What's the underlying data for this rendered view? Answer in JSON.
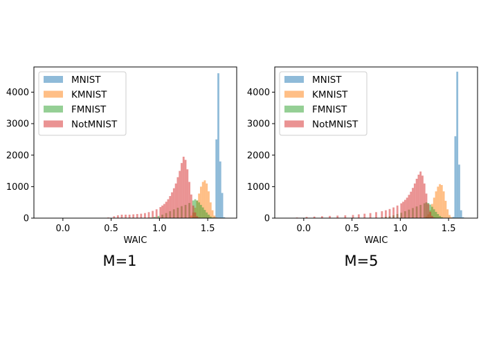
{
  "colors": {
    "MNIST": "#1f77b4",
    "KMNIST": "#ff7f0e",
    "FMNIST": "#2ca02c",
    "NotMNIST": "#d62728"
  },
  "chart_data": [
    {
      "type": "histogram",
      "caption": "M=1",
      "xlabel": "WAIC",
      "ylabel": "",
      "xlim": [
        -0.3,
        1.8
      ],
      "ylim": [
        0,
        4800
      ],
      "xticks": [
        0.0,
        0.5,
        1.0,
        1.5
      ],
      "xtick_labels": [
        "0.0",
        "0.5",
        "1.0",
        "1.5"
      ],
      "yticks": [
        0,
        1000,
        2000,
        3000,
        4000
      ],
      "ytick_labels": [
        "0",
        "1000",
        "2000",
        "3000",
        "4000"
      ],
      "grid": false,
      "legend": {
        "position": "top-left",
        "entries": [
          "MNIST",
          "KMNIST",
          "FMNIST",
          "NotMNIST"
        ]
      },
      "bar_alpha": 0.5,
      "series": [
        {
          "name": "MNIST",
          "bin_width": 0.02,
          "bins": [
            {
              "x": 1.57,
              "y": 40
            },
            {
              "x": 1.59,
              "y": 2500
            },
            {
              "x": 1.61,
              "y": 4600
            },
            {
              "x": 1.63,
              "y": 1800
            },
            {
              "x": 1.65,
              "y": 800
            },
            {
              "x": 1.67,
              "y": 30
            }
          ]
        },
        {
          "name": "KMNIST",
          "bin_width": 0.02,
          "bins": [
            {
              "x": 1.33,
              "y": 80
            },
            {
              "x": 1.35,
              "y": 180
            },
            {
              "x": 1.37,
              "y": 330
            },
            {
              "x": 1.39,
              "y": 560
            },
            {
              "x": 1.41,
              "y": 780
            },
            {
              "x": 1.43,
              "y": 1000
            },
            {
              "x": 1.45,
              "y": 1150
            },
            {
              "x": 1.47,
              "y": 1200
            },
            {
              "x": 1.49,
              "y": 1100
            },
            {
              "x": 1.51,
              "y": 850
            },
            {
              "x": 1.53,
              "y": 500
            },
            {
              "x": 1.55,
              "y": 250
            },
            {
              "x": 1.57,
              "y": 80
            },
            {
              "x": 1.59,
              "y": 20
            }
          ]
        },
        {
          "name": "FMNIST",
          "bin_width": 0.02,
          "bins": [
            {
              "x": 0.91,
              "y": 20
            },
            {
              "x": 0.95,
              "y": 40
            },
            {
              "x": 0.99,
              "y": 70
            },
            {
              "x": 1.03,
              "y": 110
            },
            {
              "x": 1.07,
              "y": 160
            },
            {
              "x": 1.11,
              "y": 220
            },
            {
              "x": 1.15,
              "y": 280
            },
            {
              "x": 1.19,
              "y": 330
            },
            {
              "x": 1.23,
              "y": 380
            },
            {
              "x": 1.27,
              "y": 420
            },
            {
              "x": 1.31,
              "y": 480
            },
            {
              "x": 1.35,
              "y": 560
            },
            {
              "x": 1.37,
              "y": 600
            },
            {
              "x": 1.39,
              "y": 560
            },
            {
              "x": 1.41,
              "y": 500
            },
            {
              "x": 1.43,
              "y": 420
            },
            {
              "x": 1.45,
              "y": 340
            },
            {
              "x": 1.47,
              "y": 260
            },
            {
              "x": 1.49,
              "y": 180
            },
            {
              "x": 1.51,
              "y": 110
            },
            {
              "x": 1.53,
              "y": 50
            },
            {
              "x": 1.55,
              "y": 20
            }
          ]
        },
        {
          "name": "NotMNIST",
          "bin_width": 0.02,
          "bins": [
            {
              "x": 0.47,
              "y": 20
            },
            {
              "x": 0.53,
              "y": 60
            },
            {
              "x": 0.57,
              "y": 90
            },
            {
              "x": 0.61,
              "y": 110
            },
            {
              "x": 0.65,
              "y": 110
            },
            {
              "x": 0.69,
              "y": 110
            },
            {
              "x": 0.73,
              "y": 120
            },
            {
              "x": 0.77,
              "y": 130
            },
            {
              "x": 0.81,
              "y": 140
            },
            {
              "x": 0.85,
              "y": 160
            },
            {
              "x": 0.89,
              "y": 190
            },
            {
              "x": 0.93,
              "y": 230
            },
            {
              "x": 0.97,
              "y": 280
            },
            {
              "x": 1.01,
              "y": 350
            },
            {
              "x": 1.03,
              "y": 400
            },
            {
              "x": 1.05,
              "y": 450
            },
            {
              "x": 1.07,
              "y": 520
            },
            {
              "x": 1.09,
              "y": 600
            },
            {
              "x": 1.11,
              "y": 700
            },
            {
              "x": 1.13,
              "y": 820
            },
            {
              "x": 1.15,
              "y": 950
            },
            {
              "x": 1.17,
              "y": 1100
            },
            {
              "x": 1.19,
              "y": 1300
            },
            {
              "x": 1.21,
              "y": 1500
            },
            {
              "x": 1.23,
              "y": 1750
            },
            {
              "x": 1.25,
              "y": 1950
            },
            {
              "x": 1.27,
              "y": 1850
            },
            {
              "x": 1.29,
              "y": 1550
            },
            {
              "x": 1.31,
              "y": 1150
            },
            {
              "x": 1.33,
              "y": 750
            },
            {
              "x": 1.35,
              "y": 400
            },
            {
              "x": 1.37,
              "y": 180
            },
            {
              "x": 1.39,
              "y": 60
            },
            {
              "x": 1.41,
              "y": 20
            }
          ]
        }
      ]
    },
    {
      "type": "histogram",
      "caption": "M=5",
      "xlabel": "WAIC",
      "ylabel": "",
      "xlim": [
        -0.3,
        1.8
      ],
      "ylim": [
        0,
        4800
      ],
      "xticks": [
        0.0,
        0.5,
        1.0,
        1.5
      ],
      "xtick_labels": [
        "0.0",
        "0.5",
        "1.0",
        "1.5"
      ],
      "yticks": [
        0,
        1000,
        2000,
        3000,
        4000
      ],
      "ytick_labels": [
        "0",
        "1000",
        "2000",
        "3000",
        "4000"
      ],
      "grid": false,
      "legend": {
        "position": "top-left",
        "entries": [
          "MNIST",
          "KMNIST",
          "FMNIST",
          "NotMNIST"
        ]
      },
      "bar_alpha": 0.5,
      "series": [
        {
          "name": "MNIST",
          "bin_width": 0.02,
          "bins": [
            {
              "x": 1.55,
              "y": 40
            },
            {
              "x": 1.57,
              "y": 2600
            },
            {
              "x": 1.59,
              "y": 4650
            },
            {
              "x": 1.61,
              "y": 1700
            },
            {
              "x": 1.63,
              "y": 250
            },
            {
              "x": 1.65,
              "y": 30
            }
          ]
        },
        {
          "name": "KMNIST",
          "bin_width": 0.02,
          "bins": [
            {
              "x": 1.27,
              "y": 50
            },
            {
              "x": 1.29,
              "y": 120
            },
            {
              "x": 1.31,
              "y": 250
            },
            {
              "x": 1.33,
              "y": 450
            },
            {
              "x": 1.35,
              "y": 650
            },
            {
              "x": 1.37,
              "y": 850
            },
            {
              "x": 1.39,
              "y": 1000
            },
            {
              "x": 1.41,
              "y": 1080
            },
            {
              "x": 1.43,
              "y": 1050
            },
            {
              "x": 1.45,
              "y": 850
            },
            {
              "x": 1.47,
              "y": 550
            },
            {
              "x": 1.49,
              "y": 280
            },
            {
              "x": 1.51,
              "y": 100
            },
            {
              "x": 1.53,
              "y": 30
            }
          ]
        },
        {
          "name": "FMNIST",
          "bin_width": 0.02,
          "bins": [
            {
              "x": 0.81,
              "y": 20
            },
            {
              "x": 0.85,
              "y": 40
            },
            {
              "x": 0.89,
              "y": 60
            },
            {
              "x": 0.93,
              "y": 90
            },
            {
              "x": 0.97,
              "y": 130
            },
            {
              "x": 1.01,
              "y": 170
            },
            {
              "x": 1.05,
              "y": 220
            },
            {
              "x": 1.09,
              "y": 270
            },
            {
              "x": 1.13,
              "y": 320
            },
            {
              "x": 1.17,
              "y": 370
            },
            {
              "x": 1.21,
              "y": 420
            },
            {
              "x": 1.25,
              "y": 470
            },
            {
              "x": 1.27,
              "y": 500
            },
            {
              "x": 1.29,
              "y": 480
            },
            {
              "x": 1.31,
              "y": 430
            },
            {
              "x": 1.33,
              "y": 360
            },
            {
              "x": 1.35,
              "y": 280
            },
            {
              "x": 1.37,
              "y": 200
            },
            {
              "x": 1.39,
              "y": 130
            },
            {
              "x": 1.41,
              "y": 70
            },
            {
              "x": 1.43,
              "y": 30
            }
          ]
        },
        {
          "name": "NotMNIST",
          "bin_width": 0.02,
          "bins": [
            {
              "x": -0.07,
              "y": 20
            },
            {
              "x": 0.03,
              "y": 40
            },
            {
              "x": 0.11,
              "y": 50
            },
            {
              "x": 0.19,
              "y": 60
            },
            {
              "x": 0.27,
              "y": 70
            },
            {
              "x": 0.35,
              "y": 80
            },
            {
              "x": 0.43,
              "y": 90
            },
            {
              "x": 0.51,
              "y": 100
            },
            {
              "x": 0.57,
              "y": 120
            },
            {
              "x": 0.63,
              "y": 140
            },
            {
              "x": 0.69,
              "y": 160
            },
            {
              "x": 0.75,
              "y": 190
            },
            {
              "x": 0.81,
              "y": 220
            },
            {
              "x": 0.85,
              "y": 250
            },
            {
              "x": 0.89,
              "y": 290
            },
            {
              "x": 0.93,
              "y": 340
            },
            {
              "x": 0.97,
              "y": 400
            },
            {
              "x": 1.01,
              "y": 470
            },
            {
              "x": 1.03,
              "y": 520
            },
            {
              "x": 1.05,
              "y": 580
            },
            {
              "x": 1.07,
              "y": 650
            },
            {
              "x": 1.09,
              "y": 740
            },
            {
              "x": 1.11,
              "y": 840
            },
            {
              "x": 1.13,
              "y": 960
            },
            {
              "x": 1.15,
              "y": 1100
            },
            {
              "x": 1.17,
              "y": 1250
            },
            {
              "x": 1.19,
              "y": 1380
            },
            {
              "x": 1.21,
              "y": 1480
            },
            {
              "x": 1.23,
              "y": 1350
            },
            {
              "x": 1.25,
              "y": 1100
            },
            {
              "x": 1.27,
              "y": 780
            },
            {
              "x": 1.29,
              "y": 450
            },
            {
              "x": 1.31,
              "y": 200
            },
            {
              "x": 1.33,
              "y": 70
            },
            {
              "x": 1.35,
              "y": 20
            }
          ]
        }
      ]
    }
  ]
}
